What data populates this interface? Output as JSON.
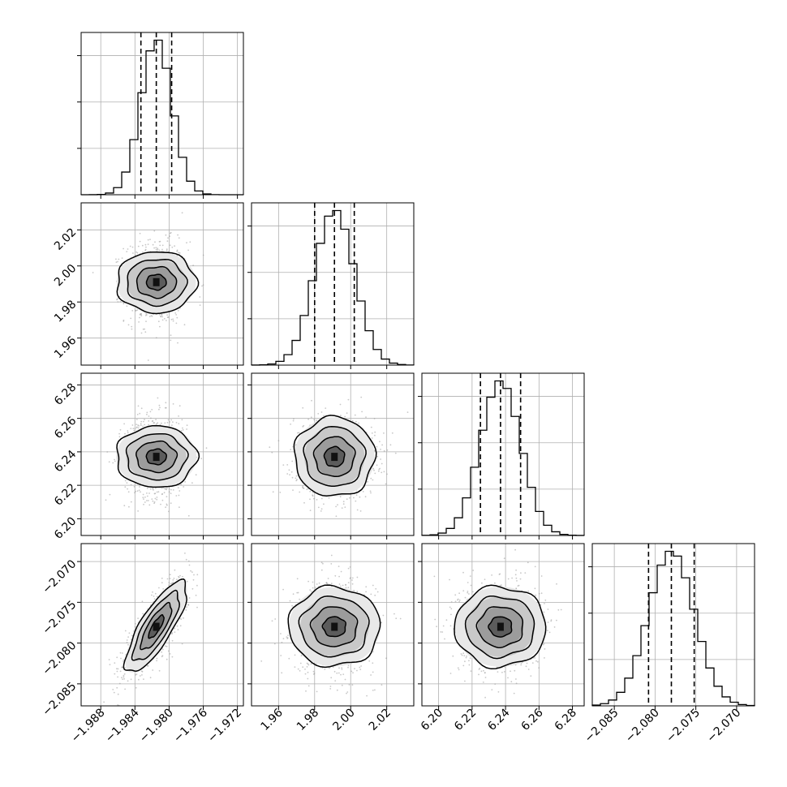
{
  "chart_data": {
    "type": "corner",
    "parameters": [
      {
        "median": -1.9815,
        "sigma": 0.0018,
        "q16": -1.9833,
        "q84": -1.9797,
        "range": [
          -1.9903,
          -1.9713
        ],
        "ticks": [
          -1.988,
          -1.984,
          -1.98,
          -1.976,
          -1.972
        ],
        "tick_labels": [
          "−1.988",
          "−1.984",
          "−1.980",
          "−1.976",
          "−1.972"
        ]
      },
      {
        "median": 1.991,
        "sigma": 0.011,
        "q16": 1.98,
        "q84": 2.002,
        "range": [
          1.945,
          2.035
        ],
        "ticks": [
          1.96,
          1.98,
          2.0,
          2.02
        ],
        "tick_labels": [
          "1.96",
          "1.98",
          "2.00",
          "2.02"
        ]
      },
      {
        "median": 6.237,
        "sigma": 0.012,
        "q16": 6.225,
        "q84": 6.249,
        "range": [
          6.19,
          6.287
        ],
        "ticks": [
          6.2,
          6.22,
          6.24,
          6.26,
          6.28
        ],
        "tick_labels": [
          "6.20",
          "6.22",
          "6.24",
          "6.26",
          "6.28"
        ]
      },
      {
        "median": -2.078,
        "sigma": 0.0028,
        "q16": -2.0808,
        "q84": -2.0752,
        "range": [
          -2.0877,
          -2.0678
        ],
        "ticks": [
          -2.085,
          -2.08,
          -2.075,
          -2.07
        ],
        "tick_labels": [
          "−2.085",
          "−2.080",
          "−2.075",
          "−2.070"
        ]
      }
    ],
    "correlations": {
      "0-3": 0.8
    },
    "histogram_bins": 20,
    "quantile_lines": "dashed",
    "contour_levels_sigma": [
      0.5,
      1.0,
      1.5,
      2.0
    ],
    "grid": true
  }
}
